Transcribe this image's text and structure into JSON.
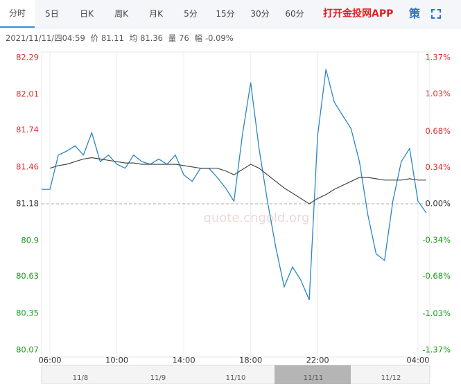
{
  "tabs": [
    "分时",
    "5日",
    "日K",
    "周K",
    "月K",
    "5分",
    "15分",
    "30分",
    "60分"
  ],
  "brand": "打开金投网APP",
  "strategy_icon": "策",
  "info": {
    "datetime": "2021/11/11/四04:59",
    "price_label": "价",
    "price": 81.11,
    "avg_label": "均",
    "avg": 81.36,
    "volume_label": "量",
    "volume": 76,
    "change_label": "幅",
    "change": "-0.09%"
  },
  "watermark": "quote.cngold.org",
  "chart_data": {
    "type": "line",
    "x": [
      "05:30",
      "06:00",
      "06:30",
      "07:00",
      "07:30",
      "08:00",
      "08:30",
      "09:00",
      "09:30",
      "10:00",
      "10:30",
      "11:00",
      "11:30",
      "12:00",
      "12:30",
      "13:00",
      "13:30",
      "14:00",
      "14:30",
      "15:00",
      "15:30",
      "16:00",
      "16:30",
      "17:00",
      "17:30",
      "18:00",
      "18:30",
      "19:00",
      "19:30",
      "20:00",
      "20:30",
      "21:00",
      "21:30",
      "22:00",
      "22:30",
      "23:00",
      "23:30",
      "00:00",
      "00:30",
      "01:00",
      "01:30",
      "02:00",
      "02:30",
      "03:00",
      "03:30",
      "04:00",
      "04:30"
    ],
    "series": [
      {
        "color": "#2a86c4",
        "values": [
          81.29,
          81.29,
          81.55,
          81.58,
          81.62,
          81.55,
          81.72,
          81.5,
          81.55,
          81.48,
          81.45,
          81.55,
          81.5,
          81.48,
          81.52,
          81.48,
          81.55,
          81.4,
          81.35,
          81.45,
          81.45,
          81.38,
          81.3,
          81.2,
          81.7,
          82.1,
          81.6,
          81.2,
          80.85,
          80.55,
          80.7,
          80.6,
          80.45,
          81.7,
          82.2,
          81.95,
          81.85,
          81.75,
          81.5,
          81.1,
          80.8,
          80.75,
          81.2,
          81.5,
          81.6,
          81.2,
          81.11
        ]
      },
      {
        "color": "#444444",
        "values": [
          null,
          81.45,
          81.47,
          81.48,
          81.5,
          81.52,
          81.53,
          81.52,
          81.51,
          81.5,
          81.49,
          81.49,
          81.48,
          81.48,
          81.48,
          81.48,
          81.48,
          81.47,
          81.46,
          81.45,
          81.45,
          81.45,
          81.43,
          81.4,
          81.44,
          81.48,
          81.45,
          81.4,
          81.35,
          81.3,
          81.26,
          81.22,
          81.18,
          81.22,
          81.25,
          81.29,
          81.32,
          81.35,
          81.38,
          81.38,
          81.37,
          81.36,
          81.36,
          81.36,
          81.37,
          81.36,
          81.36
        ]
      }
    ],
    "xticks": [
      "06:00",
      "10:00",
      "14:00",
      "18:00",
      "22:00",
      "04:00"
    ],
    "ylim": [
      80.07,
      82.29
    ],
    "yticks": [
      82.29,
      82.01,
      81.74,
      81.46,
      81.18,
      80.9,
      80.63,
      80.35,
      80.07
    ],
    "y2lim": [
      -1.37,
      1.37
    ],
    "y2ticks": [
      {
        "value": 1.37,
        "label": "1.37%"
      },
      {
        "value": 1.03,
        "label": "1.03%"
      },
      {
        "value": 0.68,
        "label": "0.68%"
      },
      {
        "value": 0.34,
        "label": "0.34%"
      },
      {
        "value": 0,
        "label": "0.00%"
      },
      {
        "value": -0.34,
        "label": "-0.34%"
      },
      {
        "value": -0.68,
        "label": "-0.68%"
      },
      {
        "value": -1.03,
        "label": "-1.03%"
      },
      {
        "value": -1.37,
        "label": "-1.37%"
      }
    ],
    "up_color": "#e03030",
    "down_color": "#1a9a1a",
    "flat_color": "#333333",
    "grid": true
  },
  "navigator": {
    "dates": [
      "11/8",
      "11/9",
      "11/10",
      "11/11",
      "11/12"
    ]
  }
}
